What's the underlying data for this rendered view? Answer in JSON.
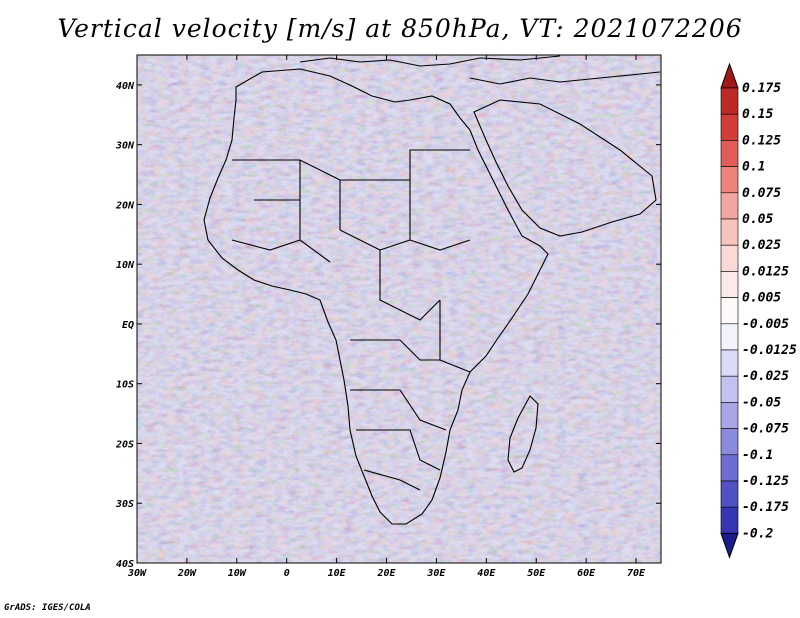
{
  "title": "Vertical velocity [m/s] at 850hPa, VT: 2021072206",
  "footer": "GrADS: IGES/COLA",
  "map": {
    "lon_range": [
      -30,
      75
    ],
    "lat_range": [
      -40,
      45
    ],
    "lon_ticks": [
      {
        "value": -30,
        "label": "30W"
      },
      {
        "value": -20,
        "label": "20W"
      },
      {
        "value": -10,
        "label": "10W"
      },
      {
        "value": 0,
        "label": "0"
      },
      {
        "value": 10,
        "label": "10E"
      },
      {
        "value": 20,
        "label": "20E"
      },
      {
        "value": 30,
        "label": "30E"
      },
      {
        "value": 40,
        "label": "40E"
      },
      {
        "value": 50,
        "label": "50E"
      },
      {
        "value": 60,
        "label": "60E"
      },
      {
        "value": 70,
        "label": "70E"
      }
    ],
    "lat_ticks": [
      {
        "value": 40,
        "label": "40N"
      },
      {
        "value": 30,
        "label": "30N"
      },
      {
        "value": 20,
        "label": "20N"
      },
      {
        "value": 10,
        "label": "10N"
      },
      {
        "value": 0,
        "label": "EQ"
      },
      {
        "value": -10,
        "label": "10S"
      },
      {
        "value": -20,
        "label": "20S"
      },
      {
        "value": -30,
        "label": "30S"
      },
      {
        "value": -40,
        "label": "40S"
      }
    ]
  },
  "colorbar": {
    "levels": [
      {
        "label": "0.175",
        "color": "#b22222"
      },
      {
        "label": "0.15",
        "color": "#c8302c"
      },
      {
        "label": "0.125",
        "color": "#dc4a44"
      },
      {
        "label": "0.1",
        "color": "#e8706a"
      },
      {
        "label": "0.075",
        "color": "#f09590"
      },
      {
        "label": "0.05",
        "color": "#f6b6b2"
      },
      {
        "label": "0.025",
        "color": "#f9cfcc"
      },
      {
        "label": "0.0125",
        "color": "#fbe3e1"
      },
      {
        "label": "0.005",
        "color": "#fdf1f0"
      },
      {
        "label": "-0.005",
        "color": "#ffffff"
      },
      {
        "label": "-0.0125",
        "color": "#e6e6fa"
      },
      {
        "label": "-0.025",
        "color": "#cfcff3"
      },
      {
        "label": "-0.05",
        "color": "#b4b4ec"
      },
      {
        "label": "-0.075",
        "color": "#9898e2"
      },
      {
        "label": "-0.1",
        "color": "#7c7cd8"
      },
      {
        "label": "-0.125",
        "color": "#5f5fcc"
      },
      {
        "label": "-0.175",
        "color": "#4242bc"
      },
      {
        "label": "-0.2",
        "color": "#2a2aa8"
      }
    ],
    "top_arrow_color": "#a01818",
    "bottom_arrow_color": "#1c1c8c"
  }
}
